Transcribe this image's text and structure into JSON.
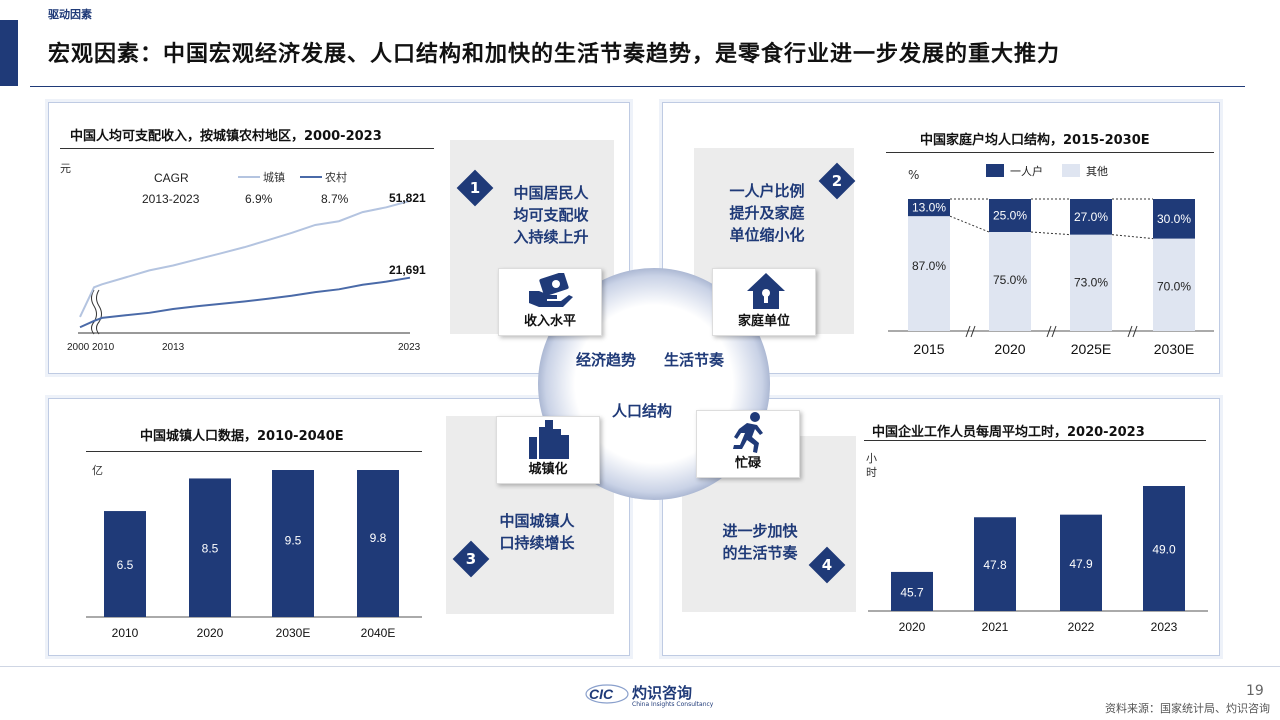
{
  "header": {
    "tag": "驱动因素",
    "title": "宏观因素：中国宏观经济发展、人口结构和加快的生活节奏趋势，是零食行业进一步发展的重大推力"
  },
  "colors": {
    "navy": "#1f3a78",
    "light": "#dfe5f1",
    "urban_line": "#b4c4e0",
    "rural_line": "#4a6aa8"
  },
  "center": {
    "label_economy": "经济趋势",
    "label_pace": "生活节奏",
    "label_population": "人口结构"
  },
  "factors": [
    {
      "num": "1",
      "text_lines": [
        "中国居民人",
        "均可支配收",
        "入持续上升"
      ],
      "icon": "money-hand-icon",
      "icon_label": "收入水平"
    },
    {
      "num": "2",
      "text_lines": [
        "一人户比例",
        "提升及家庭",
        "单位缩小化"
      ],
      "icon": "house-icon",
      "icon_label": "家庭单位"
    },
    {
      "num": "3",
      "text_lines": [
        "中国城镇人",
        "口持续增长"
      ],
      "icon": "city-buildings-icon",
      "icon_label": "城镇化"
    },
    {
      "num": "4",
      "text_lines": [
        "进一步加快",
        "的生活节奏"
      ],
      "icon": "running-person-icon",
      "icon_label": "忙碌"
    }
  ],
  "chart_data": [
    {
      "type": "line",
      "title": "中国人均可支配收入，按城镇农村地区，2000-2023",
      "unit": "元",
      "x_tick_labels": [
        "2000",
        "2010",
        "2013",
        "2023"
      ],
      "x": [
        2000,
        2010,
        2011,
        2012,
        2013,
        2014,
        2015,
        2016,
        2017,
        2018,
        2019,
        2020,
        2021,
        2022,
        2023
      ],
      "series": [
        {
          "name": "城镇",
          "values": [
            6280,
            19109,
            21810,
            24565,
            26467,
            28844,
            31195,
            33616,
            36396,
            39251,
            42359,
            43834,
            47412,
            49283,
            51821
          ]
        },
        {
          "name": "农村",
          "values": [
            2253,
            5919,
            6977,
            7917,
            9430,
            10489,
            11422,
            12363,
            13432,
            14617,
            16021,
            17131,
            18931,
            20133,
            21691
          ]
        }
      ],
      "end_labels": [
        "51,821",
        "21,691"
      ],
      "cagr": {
        "label": "CAGR",
        "period": "2013-2023",
        "urban": "6.9%",
        "rural": "8.7%"
      }
    },
    {
      "type": "bar",
      "stacked": true,
      "title": "中国家庭户均人口结构，2015-2030E",
      "unit": "%",
      "categories": [
        "2015",
        "2020",
        "2025E",
        "2030E"
      ],
      "series": [
        {
          "name": "一人户",
          "values": [
            13.0,
            25.0,
            27.0,
            30.0
          ],
          "labels": [
            "13.0%",
            "25.0%",
            "27.0%",
            "30.0%"
          ]
        },
        {
          "name": "其他",
          "values": [
            87.0,
            75.0,
            73.0,
            70.0
          ],
          "labels": [
            "87.0%",
            "75.0%",
            "73.0%",
            "70.0%"
          ]
        }
      ]
    },
    {
      "type": "bar",
      "title": "中国城镇人口数据，2010-2040E",
      "unit": "亿",
      "categories": [
        "2010",
        "2020",
        "2030E",
        "2040E"
      ],
      "values": [
        6.5,
        8.5,
        9.5,
        9.8
      ],
      "labels": [
        "6.5",
        "8.5",
        "9.5",
        "9.8"
      ]
    },
    {
      "type": "bar",
      "title": "中国企业工作人员每周平均工时，2020-2023",
      "unit_lines": [
        "小",
        "时"
      ],
      "categories": [
        "2020",
        "2021",
        "2022",
        "2023"
      ],
      "values": [
        45.7,
        47.8,
        47.9,
        49.0
      ],
      "labels": [
        "45.7",
        "47.8",
        "47.9",
        "49.0"
      ]
    }
  ],
  "footer": {
    "logo_mark": "CIC",
    "logo_name": "灼识咨询",
    "logo_sub": "China Insights Consultancy",
    "page": "19",
    "source": "资料来源：国家统计局、灼识咨询"
  }
}
